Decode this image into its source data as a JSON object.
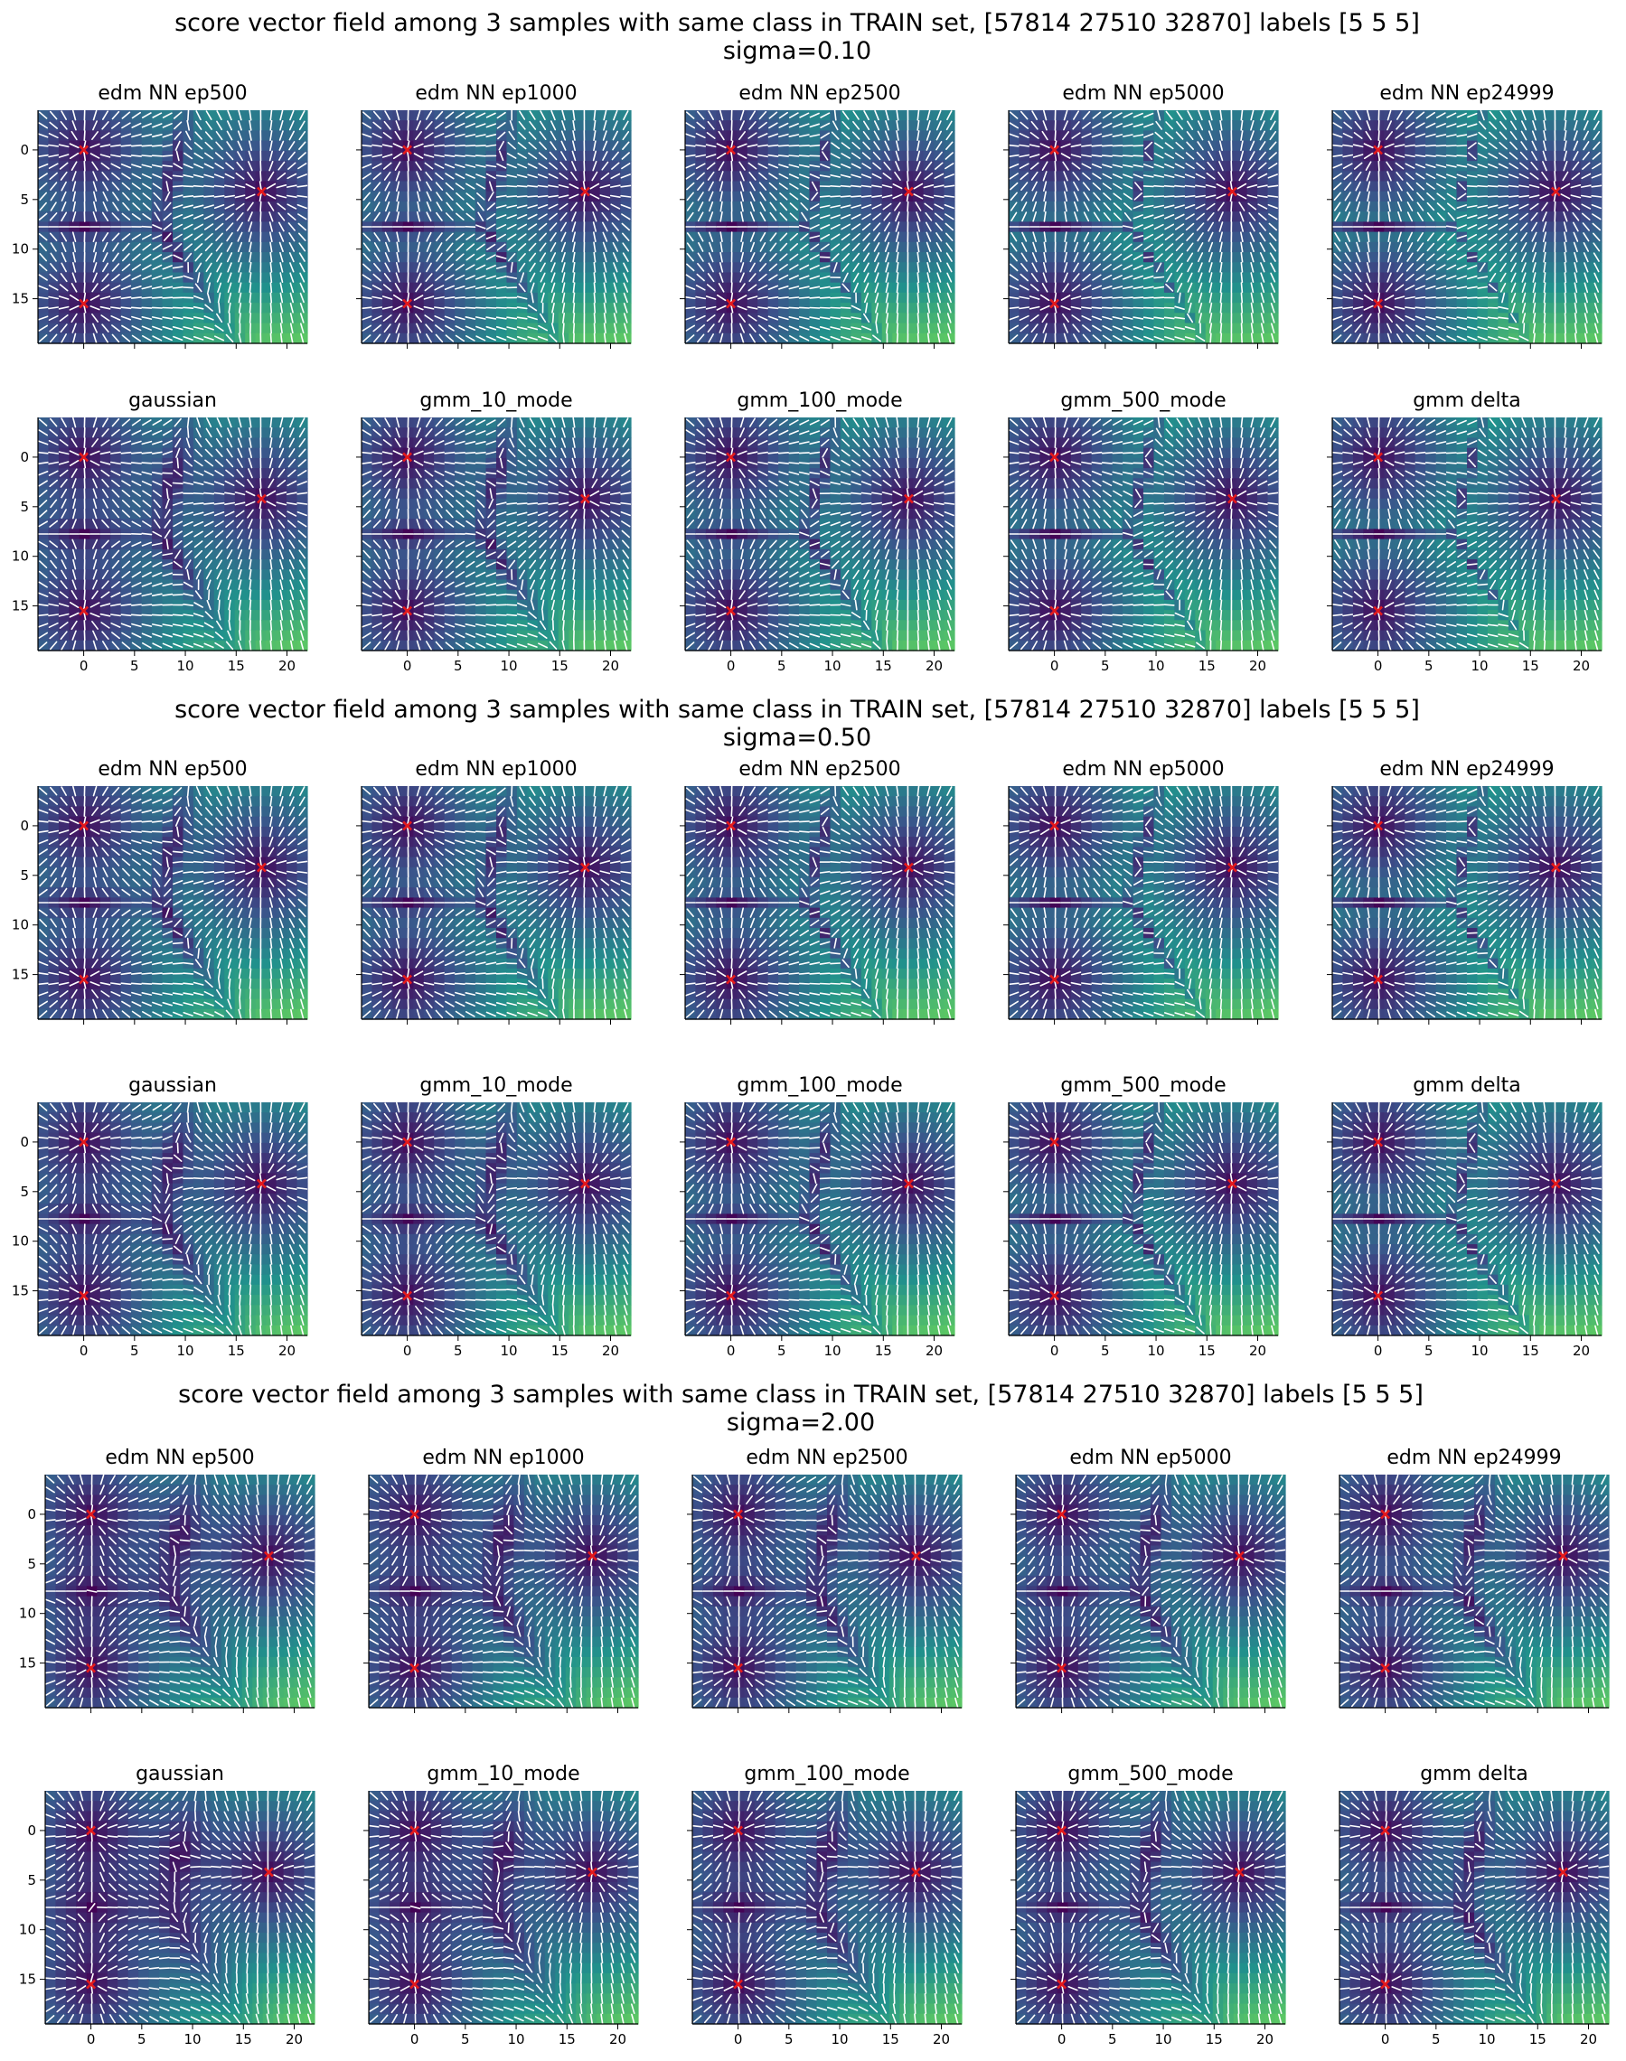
{
  "figure": {
    "sections": [
      {
        "title_line1": "score vector field among 3 samples with same class in TRAIN set, [57814 27510 32870] labels [5 5 5]",
        "title_line2": "sigma=0.10"
      },
      {
        "title_line1": "score vector field among 3 samples with same class in TRAIN set, [57814 27510 32870] labels [5 5 5]",
        "title_line2": "sigma=0.50"
      },
      {
        "title_line1": "score vector field among 3 samples with same class in TRAIN set, [57814 27510 32870] labels [5 5 5]",
        "title_line2": "sigma=2.00"
      }
    ],
    "colormap": [
      "#440154",
      "#3b528b",
      "#21918c",
      "#5ec962",
      "#fde725"
    ],
    "marker_color": "#e41a1c",
    "arrow_color": "#ffffff"
  },
  "chart_data": {
    "type": "heatmap",
    "description_kind": "quiver over score-norm heatmap",
    "x_ticks": [
      0,
      5,
      10,
      15,
      20
    ],
    "y_ticks": [
      0,
      5,
      10,
      15
    ],
    "xlim": [
      -4.5,
      22
    ],
    "ylim": [
      19.5,
      -4
    ],
    "samples": [
      {
        "x": 0,
        "y": 0
      },
      {
        "x": 17.5,
        "y": 4.2
      },
      {
        "x": 0,
        "y": 15.5
      }
    ],
    "rows": [
      {
        "panels": [
          "edm NN ep500",
          "edm NN ep1000",
          "edm NN ep2500",
          "edm NN ep5000",
          "edm NN ep24999"
        ]
      },
      {
        "panels": [
          "gaussian",
          "gmm_10_mode",
          "gmm_100_mode",
          "gmm_500_mode",
          "gmm delta"
        ]
      },
      {
        "panels": [
          "edm NN ep500",
          "edm NN ep1000",
          "edm NN ep2500",
          "edm NN ep5000",
          "edm NN ep24999"
        ]
      },
      {
        "panels": [
          "gaussian",
          "gmm_10_mode",
          "gmm_100_mode",
          "gmm_500_mode",
          "gmm delta"
        ]
      },
      {
        "panels": [
          "edm NN ep500",
          "edm NN ep1000",
          "edm NN ep2500",
          "edm NN ep5000",
          "edm NN ep24999"
        ]
      },
      {
        "panels": [
          "gaussian",
          "gmm_10_mode",
          "gmm_100_mode",
          "gmm_500_mode",
          "gmm delta"
        ]
      }
    ]
  }
}
